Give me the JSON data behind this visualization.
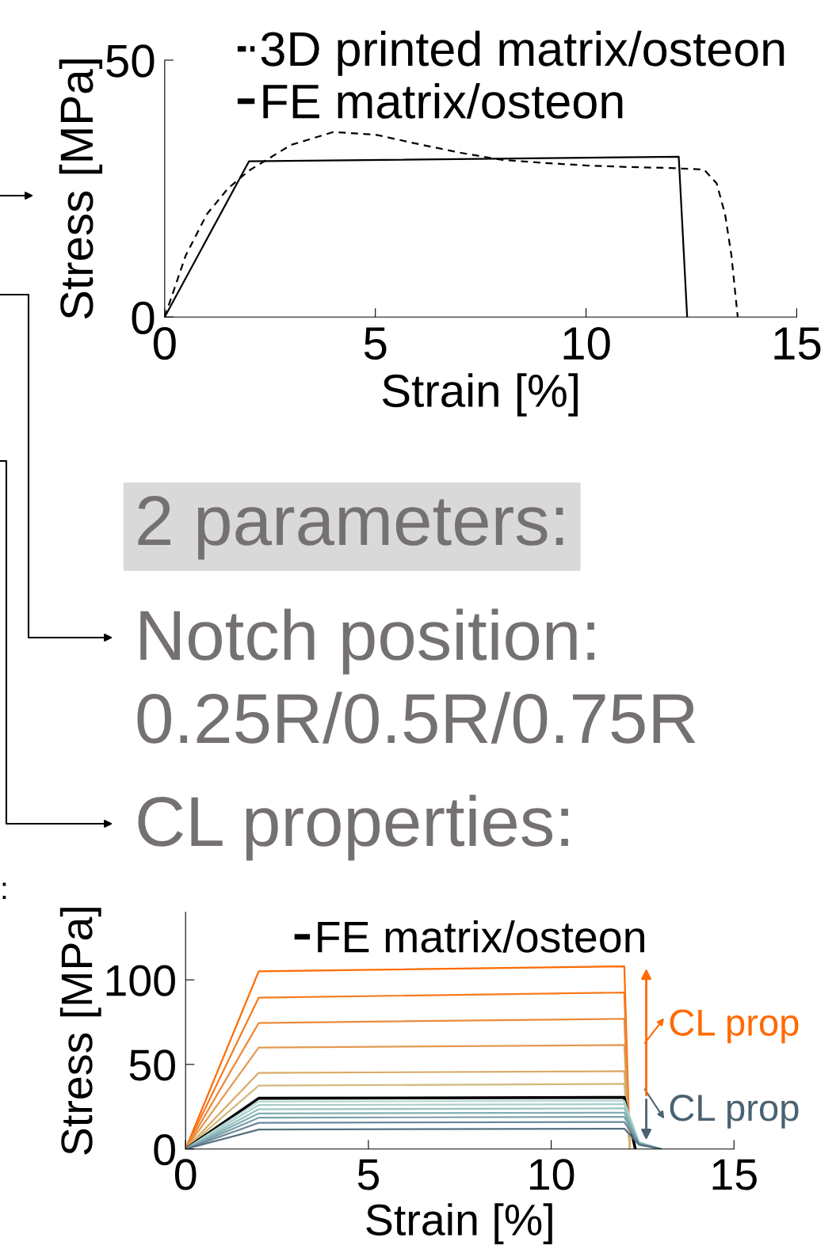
{
  "chart_data": [
    {
      "type": "line",
      "xlabel": "Strain [%]",
      "ylabel": "Stress [MPa]",
      "xlim": [
        0,
        15
      ],
      "ylim": [
        0,
        50
      ],
      "xticks": [
        0,
        5,
        10,
        15
      ],
      "yticks": [
        0,
        50
      ],
      "grid": false,
      "legend": "top",
      "marker": "none",
      "series": [
        {
          "name": "3D printed matrix/osteon",
          "color": "#000000",
          "line_style": "dashed",
          "x": [
            0,
            0.5,
            1,
            1.5,
            2,
            3,
            4,
            5,
            6,
            7,
            8,
            9,
            10,
            11,
            12,
            12.8,
            13.1,
            13.3,
            13.45,
            13.6
          ],
          "values": [
            0,
            12,
            20,
            25,
            28.5,
            33.5,
            36,
            35.5,
            33.7,
            32,
            30.6,
            30,
            29.5,
            29.2,
            29,
            28.7,
            26,
            20,
            12,
            0
          ]
        },
        {
          "name": "FE matrix/osteon",
          "color": "#000000",
          "line_style": "solid",
          "x": [
            0,
            2,
            12.2,
            12.4
          ],
          "values": [
            0,
            30.3,
            31.2,
            0
          ]
        }
      ]
    },
    {
      "type": "other",
      "annotations": [
        "2 parameters:",
        "Notch position:",
        "0.25R/0.5R/0.75R",
        "CL properties:",
        ":"
      ]
    },
    {
      "type": "line",
      "xlabel": "Strain [%]",
      "ylabel": "Stress [MPa]",
      "xlim": [
        0,
        15
      ],
      "ylim": [
        0,
        140
      ],
      "xticks": [
        0,
        5,
        10,
        15
      ],
      "yticks": [
        0,
        50,
        100
      ],
      "grid": false,
      "legend": "top",
      "marker": "none",
      "line_style": "solid",
      "annotations": [
        "CL prop",
        "CL prop"
      ],
      "series": [
        {
          "color": "#ff6a00",
          "x": [
            0,
            2,
            12,
            12.15
          ],
          "values": [
            0,
            105,
            108,
            0
          ]
        },
        {
          "color": "#f57a1e",
          "x": [
            0,
            2,
            12,
            12.15
          ],
          "values": [
            0,
            89.5,
            92.5,
            0
          ]
        },
        {
          "color": "#ec8a3a",
          "x": [
            0,
            2,
            12,
            12.15
          ],
          "values": [
            0,
            74.5,
            77,
            0
          ]
        },
        {
          "color": "#e29a52",
          "x": [
            0,
            2,
            12,
            12.15
          ],
          "values": [
            0,
            60,
            61.5,
            0
          ]
        },
        {
          "color": "#d9aa66",
          "x": [
            0,
            2,
            12,
            12.15
          ],
          "values": [
            0,
            45,
            46,
            0
          ]
        },
        {
          "color": "#d0ba7c",
          "x": [
            0,
            2,
            12,
            12.15
          ],
          "values": [
            0,
            37.5,
            38.5,
            0
          ]
        },
        {
          "name": "FE matrix/osteon",
          "color": "#000000",
          "x": [
            0,
            2,
            12,
            12.3
          ],
          "values": [
            0,
            30,
            30.5,
            0
          ]
        },
        {
          "color": "#b8d8d4",
          "x": [
            0,
            2,
            12,
            12.4,
            13
          ],
          "values": [
            0,
            28,
            28.5,
            4,
            0
          ]
        },
        {
          "color": "#a6cdca",
          "x": [
            0,
            2,
            12,
            12.4,
            13
          ],
          "values": [
            0,
            26,
            26.5,
            4,
            0
          ]
        },
        {
          "color": "#94bfbf",
          "x": [
            0,
            2,
            12,
            12.4,
            13
          ],
          "values": [
            0,
            23.5,
            24,
            3.5,
            0
          ]
        },
        {
          "color": "#82aeb2",
          "x": [
            0,
            2,
            12,
            12.4,
            13
          ],
          "values": [
            0,
            21,
            21.5,
            3.5,
            0
          ]
        },
        {
          "color": "#7a9eaa",
          "x": [
            0,
            2,
            12,
            12.4,
            13
          ],
          "values": [
            0,
            18.5,
            19,
            3,
            0
          ]
        },
        {
          "color": "#6b8a9a",
          "x": [
            0,
            2,
            12,
            12.4,
            13
          ],
          "values": [
            0,
            15.5,
            16,
            3,
            0
          ]
        },
        {
          "color": "#56707f",
          "x": [
            0,
            2,
            12,
            12.4,
            13
          ],
          "values": [
            0,
            11.5,
            12,
            2.5,
            0
          ]
        }
      ]
    }
  ]
}
